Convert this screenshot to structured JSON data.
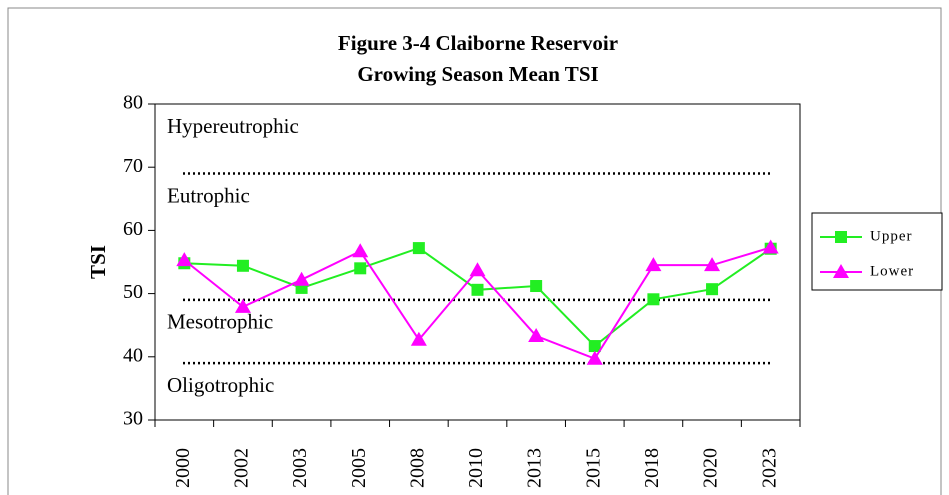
{
  "chart_data": {
    "type": "line",
    "title": "Figure 3-4 Claiborne Reservoir",
    "subtitle": "Growing Season Mean TSI",
    "y_label": "TSI",
    "categories": [
      "2000",
      "2002",
      "2003",
      "2005",
      "2008",
      "2010",
      "2013",
      "2015",
      "2018",
      "2020",
      "2023"
    ],
    "series": [
      {
        "name": "Upper",
        "color": "#22ee22",
        "marker": "square",
        "values": [
          54.8,
          54.4,
          50.9,
          54.0,
          57.2,
          50.6,
          51.2,
          41.7,
          49.1,
          50.7,
          57.1
        ]
      },
      {
        "name": "Lower",
        "color": "#ff00ff",
        "marker": "triangle",
        "values": [
          55.3,
          47.9,
          52.2,
          56.7,
          42.7,
          53.7,
          43.3,
          39.7,
          54.5,
          54.5,
          57.3
        ]
      }
    ],
    "ylim": [
      30,
      80
    ],
    "yticks": [
      30,
      40,
      50,
      60,
      70,
      80
    ],
    "thresholds": [
      69,
      49,
      39
    ],
    "zones": [
      "Hypereutrophic",
      "Eutrophic",
      "Mesotrophic",
      "Oligotrophic"
    ],
    "legend": "right"
  }
}
